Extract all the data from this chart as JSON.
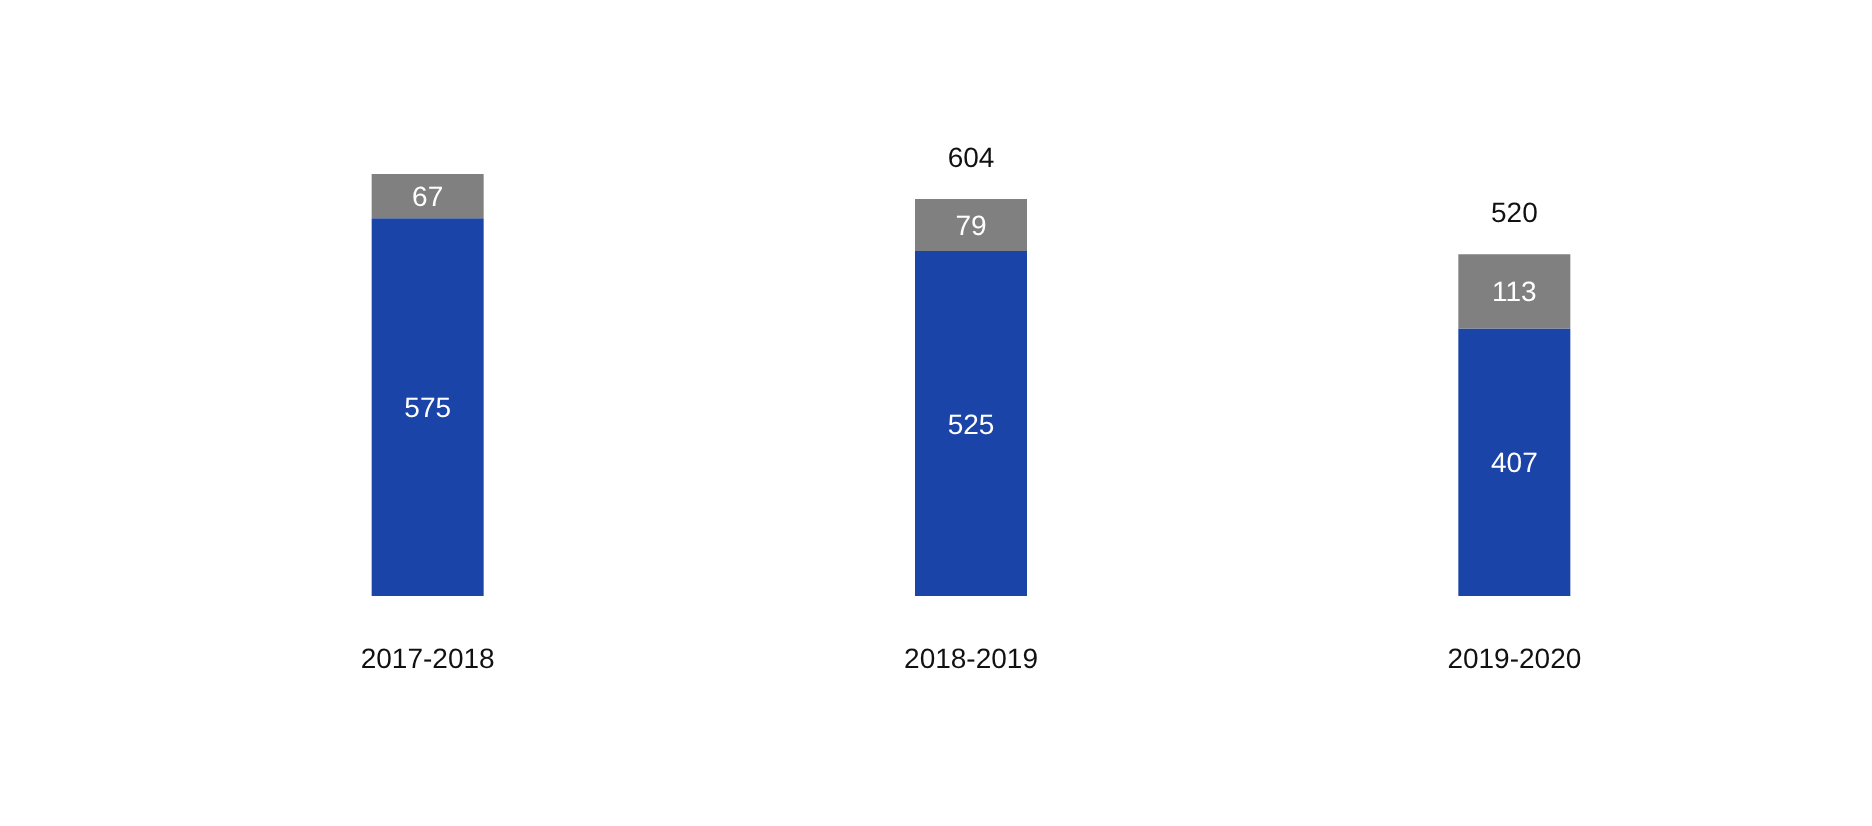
{
  "chart_data": {
    "type": "bar",
    "stacked": true,
    "categories": [
      "2017-2018",
      "2018-2019",
      "2019-2020"
    ],
    "series": [
      {
        "color": "#1a44a8",
        "values": [
          575,
          525,
          407
        ]
      },
      {
        "color": "#808080",
        "values": [
          67,
          79,
          113
        ]
      }
    ],
    "data_labels": true,
    "totals": [
      null,
      "604",
      "520"
    ]
  }
}
